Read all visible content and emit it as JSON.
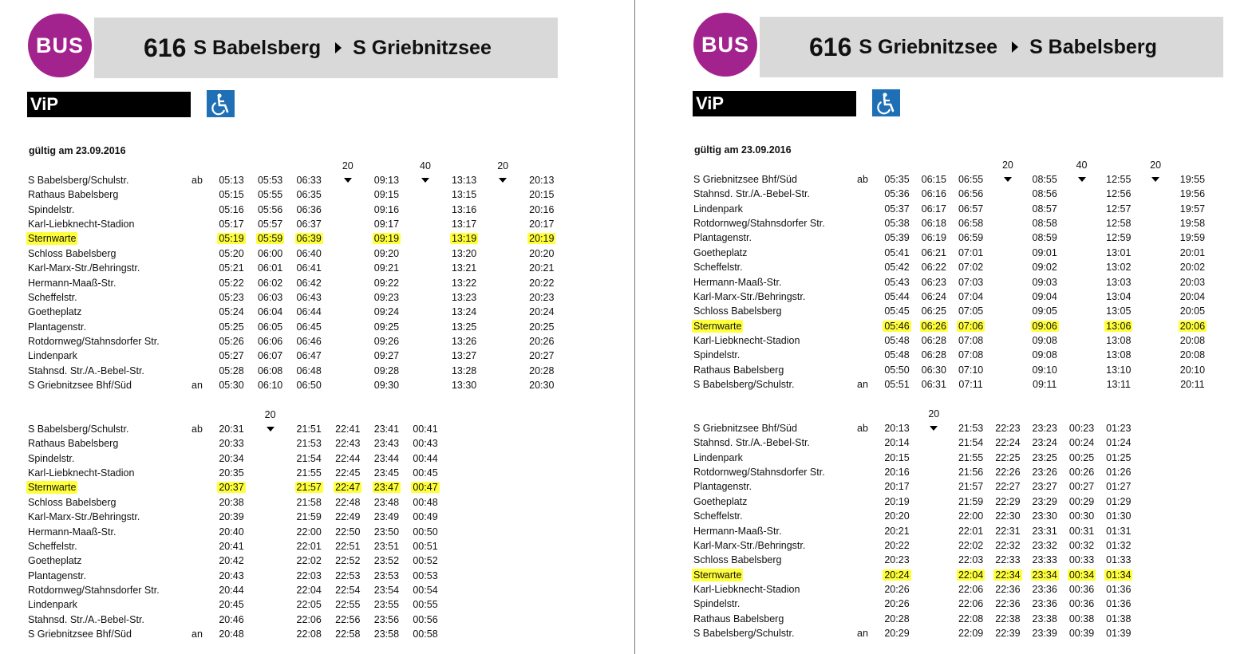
{
  "panels": [
    {
      "badge": "BUS",
      "line": "616",
      "from": "S Babelsberg",
      "to": "S Griebnitzsee",
      "brand": "ViP",
      "valid": "gültig am 23.09.2016",
      "blocks": [
        {
          "intervals": [
            null,
            null,
            null,
            "20",
            null,
            "40",
            null,
            "20",
            null
          ],
          "rows": [
            {
              "stop": "S Babelsberg/Schulstr.",
              "mark": "ab",
              "times": [
                "05:13",
                "05:53",
                "06:33",
                null,
                "09:13",
                null,
                "13:13",
                null,
                "20:13"
              ]
            },
            {
              "stop": "Rathaus Babelsberg",
              "times": [
                "05:15",
                "05:55",
                "06:35",
                null,
                "09:15",
                null,
                "13:15",
                null,
                "20:15"
              ]
            },
            {
              "stop": "Spindelstr.",
              "times": [
                "05:16",
                "05:56",
                "06:36",
                null,
                "09:16",
                null,
                "13:16",
                null,
                "20:16"
              ]
            },
            {
              "stop": "Karl-Liebknecht-Stadion",
              "times": [
                "05:17",
                "05:57",
                "06:37",
                null,
                "09:17",
                null,
                "13:17",
                null,
                "20:17"
              ]
            },
            {
              "stop": "Sternwarte",
              "highlight": true,
              "times": [
                "05:19",
                "05:59",
                "06:39",
                null,
                "09:19",
                null,
                "13:19",
                null,
                "20:19"
              ]
            },
            {
              "stop": "Schloss Babelsberg",
              "times": [
                "05:20",
                "06:00",
                "06:40",
                null,
                "09:20",
                null,
                "13:20",
                null,
                "20:20"
              ]
            },
            {
              "stop": "Karl-Marx-Str./Behringstr.",
              "times": [
                "05:21",
                "06:01",
                "06:41",
                null,
                "09:21",
                null,
                "13:21",
                null,
                "20:21"
              ]
            },
            {
              "stop": "Hermann-Maaß-Str.",
              "times": [
                "05:22",
                "06:02",
                "06:42",
                null,
                "09:22",
                null,
                "13:22",
                null,
                "20:22"
              ]
            },
            {
              "stop": "Scheffelstr.",
              "times": [
                "05:23",
                "06:03",
                "06:43",
                null,
                "09:23",
                null,
                "13:23",
                null,
                "20:23"
              ]
            },
            {
              "stop": "Goetheplatz",
              "times": [
                "05:24",
                "06:04",
                "06:44",
                null,
                "09:24",
                null,
                "13:24",
                null,
                "20:24"
              ]
            },
            {
              "stop": "Plantagenstr.",
              "times": [
                "05:25",
                "06:05",
                "06:45",
                null,
                "09:25",
                null,
                "13:25",
                null,
                "20:25"
              ]
            },
            {
              "stop": "Rotdornweg/Stahnsdorfer Str.",
              "times": [
                "05:26",
                "06:06",
                "06:46",
                null,
                "09:26",
                null,
                "13:26",
                null,
                "20:26"
              ]
            },
            {
              "stop": "Lindenpark",
              "times": [
                "05:27",
                "06:07",
                "06:47",
                null,
                "09:27",
                null,
                "13:27",
                null,
                "20:27"
              ]
            },
            {
              "stop": "Stahnsd. Str./A.-Bebel-Str.",
              "times": [
                "05:28",
                "06:08",
                "06:48",
                null,
                "09:28",
                null,
                "13:28",
                null,
                "20:28"
              ]
            },
            {
              "stop": "S Griebnitzsee Bhf/Süd",
              "mark": "an",
              "times": [
                "05:30",
                "06:10",
                "06:50",
                null,
                "09:30",
                null,
                "13:30",
                null,
                "20:30"
              ]
            }
          ]
        },
        {
          "intervals": [
            null,
            "20",
            null,
            null,
            null,
            null
          ],
          "rows": [
            {
              "stop": "S Babelsberg/Schulstr.",
              "mark": "ab",
              "times": [
                "20:31",
                null,
                "21:51",
                "22:41",
                "23:41",
                "00:41"
              ]
            },
            {
              "stop": "Rathaus Babelsberg",
              "times": [
                "20:33",
                null,
                "21:53",
                "22:43",
                "23:43",
                "00:43"
              ]
            },
            {
              "stop": "Spindelstr.",
              "times": [
                "20:34",
                null,
                "21:54",
                "22:44",
                "23:44",
                "00:44"
              ]
            },
            {
              "stop": "Karl-Liebknecht-Stadion",
              "times": [
                "20:35",
                null,
                "21:55",
                "22:45",
                "23:45",
                "00:45"
              ]
            },
            {
              "stop": "Sternwarte",
              "highlight": true,
              "times": [
                "20:37",
                null,
                "21:57",
                "22:47",
                "23:47",
                "00:47"
              ]
            },
            {
              "stop": "Schloss Babelsberg",
              "times": [
                "20:38",
                null,
                "21:58",
                "22:48",
                "23:48",
                "00:48"
              ]
            },
            {
              "stop": "Karl-Marx-Str./Behringstr.",
              "times": [
                "20:39",
                null,
                "21:59",
                "22:49",
                "23:49",
                "00:49"
              ]
            },
            {
              "stop": "Hermann-Maaß-Str.",
              "times": [
                "20:40",
                null,
                "22:00",
                "22:50",
                "23:50",
                "00:50"
              ]
            },
            {
              "stop": "Scheffelstr.",
              "times": [
                "20:41",
                null,
                "22:01",
                "22:51",
                "23:51",
                "00:51"
              ]
            },
            {
              "stop": "Goetheplatz",
              "times": [
                "20:42",
                null,
                "22:02",
                "22:52",
                "23:52",
                "00:52"
              ]
            },
            {
              "stop": "Plantagenstr.",
              "times": [
                "20:43",
                null,
                "22:03",
                "22:53",
                "23:53",
                "00:53"
              ]
            },
            {
              "stop": "Rotdornweg/Stahnsdorfer Str.",
              "times": [
                "20:44",
                null,
                "22:04",
                "22:54",
                "23:54",
                "00:54"
              ]
            },
            {
              "stop": "Lindenpark",
              "times": [
                "20:45",
                null,
                "22:05",
                "22:55",
                "23:55",
                "00:55"
              ]
            },
            {
              "stop": "Stahnsd. Str./A.-Bebel-Str.",
              "times": [
                "20:46",
                null,
                "22:06",
                "22:56",
                "23:56",
                "00:56"
              ]
            },
            {
              "stop": "S Griebnitzsee Bhf/Süd",
              "mark": "an",
              "times": [
                "20:48",
                null,
                "22:08",
                "22:58",
                "23:58",
                "00:58"
              ]
            }
          ]
        }
      ]
    },
    {
      "badge": "BUS",
      "line": "616",
      "from": "S Griebnitzsee",
      "to": "S Babelsberg",
      "brand": "ViP",
      "valid": "gültig am 23.09.2016",
      "blocks": [
        {
          "intervals": [
            null,
            null,
            null,
            "20",
            null,
            "40",
            null,
            "20",
            null
          ],
          "rows": [
            {
              "stop": "S Griebnitzsee Bhf/Süd",
              "mark": "ab",
              "times": [
                "05:35",
                "06:15",
                "06:55",
                null,
                "08:55",
                null,
                "12:55",
                null,
                "19:55"
              ]
            },
            {
              "stop": "Stahnsd. Str./A.-Bebel-Str.",
              "times": [
                "05:36",
                "06:16",
                "06:56",
                null,
                "08:56",
                null,
                "12:56",
                null,
                "19:56"
              ]
            },
            {
              "stop": "Lindenpark",
              "times": [
                "05:37",
                "06:17",
                "06:57",
                null,
                "08:57",
                null,
                "12:57",
                null,
                "19:57"
              ]
            },
            {
              "stop": "Rotdornweg/Stahnsdorfer Str.",
              "times": [
                "05:38",
                "06:18",
                "06:58",
                null,
                "08:58",
                null,
                "12:58",
                null,
                "19:58"
              ]
            },
            {
              "stop": "Plantagenstr.",
              "times": [
                "05:39",
                "06:19",
                "06:59",
                null,
                "08:59",
                null,
                "12:59",
                null,
                "19:59"
              ]
            },
            {
              "stop": "Goetheplatz",
              "times": [
                "05:41",
                "06:21",
                "07:01",
                null,
                "09:01",
                null,
                "13:01",
                null,
                "20:01"
              ]
            },
            {
              "stop": "Scheffelstr.",
              "times": [
                "05:42",
                "06:22",
                "07:02",
                null,
                "09:02",
                null,
                "13:02",
                null,
                "20:02"
              ]
            },
            {
              "stop": "Hermann-Maaß-Str.",
              "times": [
                "05:43",
                "06:23",
                "07:03",
                null,
                "09:03",
                null,
                "13:03",
                null,
                "20:03"
              ]
            },
            {
              "stop": "Karl-Marx-Str./Behringstr.",
              "times": [
                "05:44",
                "06:24",
                "07:04",
                null,
                "09:04",
                null,
                "13:04",
                null,
                "20:04"
              ]
            },
            {
              "stop": "Schloss Babelsberg",
              "times": [
                "05:45",
                "06:25",
                "07:05",
                null,
                "09:05",
                null,
                "13:05",
                null,
                "20:05"
              ]
            },
            {
              "stop": "Sternwarte",
              "highlight": true,
              "times": [
                "05:46",
                "06:26",
                "07:06",
                null,
                "09:06",
                null,
                "13:06",
                null,
                "20:06"
              ]
            },
            {
              "stop": "Karl-Liebknecht-Stadion",
              "times": [
                "05:48",
                "06:28",
                "07:08",
                null,
                "09:08",
                null,
                "13:08",
                null,
                "20:08"
              ]
            },
            {
              "stop": "Spindelstr.",
              "times": [
                "05:48",
                "06:28",
                "07:08",
                null,
                "09:08",
                null,
                "13:08",
                null,
                "20:08"
              ]
            },
            {
              "stop": "Rathaus Babelsberg",
              "times": [
                "05:50",
                "06:30",
                "07:10",
                null,
                "09:10",
                null,
                "13:10",
                null,
                "20:10"
              ]
            },
            {
              "stop": "S Babelsberg/Schulstr.",
              "mark": "an",
              "times": [
                "05:51",
                "06:31",
                "07:11",
                null,
                "09:11",
                null,
                "13:11",
                null,
                "20:11"
              ]
            }
          ]
        },
        {
          "intervals": [
            null,
            "20",
            null,
            null,
            null,
            null,
            null
          ],
          "rows": [
            {
              "stop": "S Griebnitzsee Bhf/Süd",
              "mark": "ab",
              "times": [
                "20:13",
                null,
                "21:53",
                "22:23",
                "23:23",
                "00:23",
                "01:23"
              ]
            },
            {
              "stop": "Stahnsd. Str./A.-Bebel-Str.",
              "times": [
                "20:14",
                null,
                "21:54",
                "22:24",
                "23:24",
                "00:24",
                "01:24"
              ]
            },
            {
              "stop": "Lindenpark",
              "times": [
                "20:15",
                null,
                "21:55",
                "22:25",
                "23:25",
                "00:25",
                "01:25"
              ]
            },
            {
              "stop": "Rotdornweg/Stahnsdorfer Str.",
              "times": [
                "20:16",
                null,
                "21:56",
                "22:26",
                "23:26",
                "00:26",
                "01:26"
              ]
            },
            {
              "stop": "Plantagenstr.",
              "times": [
                "20:17",
                null,
                "21:57",
                "22:27",
                "23:27",
                "00:27",
                "01:27"
              ]
            },
            {
              "stop": "Goetheplatz",
              "times": [
                "20:19",
                null,
                "21:59",
                "22:29",
                "23:29",
                "00:29",
                "01:29"
              ]
            },
            {
              "stop": "Scheffelstr.",
              "times": [
                "20:20",
                null,
                "22:00",
                "22:30",
                "23:30",
                "00:30",
                "01:30"
              ]
            },
            {
              "stop": "Hermann-Maaß-Str.",
              "times": [
                "20:21",
                null,
                "22:01",
                "22:31",
                "23:31",
                "00:31",
                "01:31"
              ]
            },
            {
              "stop": "Karl-Marx-Str./Behringstr.",
              "times": [
                "20:22",
                null,
                "22:02",
                "22:32",
                "23:32",
                "00:32",
                "01:32"
              ]
            },
            {
              "stop": "Schloss Babelsberg",
              "times": [
                "20:23",
                null,
                "22:03",
                "22:33",
                "23:33",
                "00:33",
                "01:33"
              ]
            },
            {
              "stop": "Sternwarte",
              "highlight": true,
              "times": [
                "20:24",
                null,
                "22:04",
                "22:34",
                "23:34",
                "00:34",
                "01:34"
              ]
            },
            {
              "stop": "Karl-Liebknecht-Stadion",
              "times": [
                "20:26",
                null,
                "22:06",
                "22:36",
                "23:36",
                "00:36",
                "01:36"
              ]
            },
            {
              "stop": "Spindelstr.",
              "times": [
                "20:26",
                null,
                "22:06",
                "22:36",
                "23:36",
                "00:36",
                "01:36"
              ]
            },
            {
              "stop": "Rathaus Babelsberg",
              "times": [
                "20:28",
                null,
                "22:08",
                "22:38",
                "23:38",
                "00:38",
                "01:38"
              ]
            },
            {
              "stop": "S Babelsberg/Schulstr.",
              "mark": "an",
              "times": [
                "20:29",
                null,
                "22:09",
                "22:39",
                "23:39",
                "00:39",
                "01:39"
              ]
            }
          ]
        }
      ]
    }
  ]
}
